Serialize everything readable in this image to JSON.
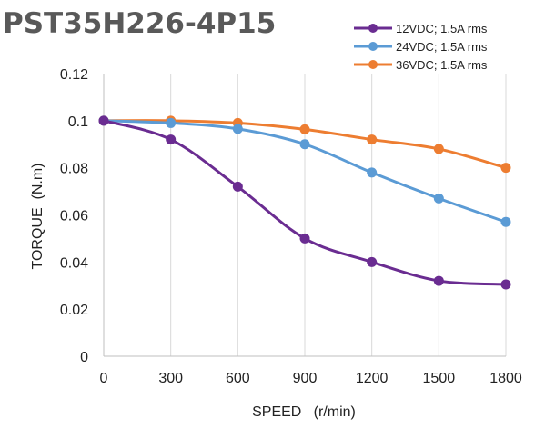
{
  "chart_data": {
    "type": "line",
    "title": "PST35H226-4P15",
    "xlabel": "SPEED   (r/min)",
    "ylabel": "TORQUE  (N.m)",
    "xlim": [
      0,
      1800
    ],
    "ylim": [
      0,
      0.12
    ],
    "x_ticks": [
      0,
      300,
      600,
      900,
      1200,
      1500,
      1800
    ],
    "y_ticks": [
      0,
      0.02,
      0.04,
      0.06,
      0.08,
      0.1,
      0.12
    ],
    "x_tick_labels": [
      "0",
      "300",
      "600",
      "900",
      "1200",
      "1500",
      "1800"
    ],
    "y_tick_labels": [
      "0",
      "0.02",
      "0.04",
      "0.06",
      "0.08",
      "0.1",
      "0.12"
    ],
    "grid": "vertical",
    "legend_position": "top-right",
    "x": [
      0,
      300,
      600,
      900,
      1200,
      1500,
      1800
    ],
    "series": [
      {
        "name": "12VDC; 1.5A rms",
        "color": "#6a2c91",
        "values": [
          0.1,
          0.092,
          0.072,
          0.05,
          0.04,
          0.032,
          0.0305
        ]
      },
      {
        "name": "24VDC; 1.5A rms",
        "color": "#5b9bd5",
        "values": [
          0.1,
          0.099,
          0.0965,
          0.09,
          0.078,
          0.067,
          0.057
        ]
      },
      {
        "name": "36VDC; 1.5A rms",
        "color": "#ed7d31",
        "values": [
          0.1,
          0.1,
          0.099,
          0.0963,
          0.092,
          0.088,
          0.08
        ]
      }
    ]
  }
}
